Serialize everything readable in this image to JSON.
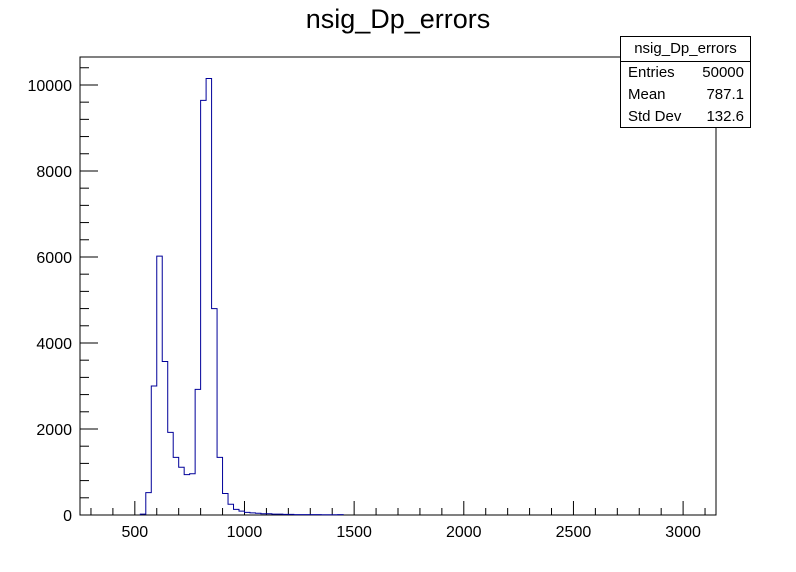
{
  "chart_data": {
    "type": "bar",
    "title": "nsig_Dp_errors",
    "xlabel": "",
    "ylabel": "",
    "xlim": [
      250,
      3150
    ],
    "ylim": [
      0,
      10650
    ],
    "bin_width": 25,
    "x_ticks": [
      500,
      1000,
      1500,
      2000,
      2500,
      3000
    ],
    "y_ticks": [
      0,
      2000,
      4000,
      6000,
      8000,
      10000
    ],
    "bin_low_edges": [
      525,
      550,
      575,
      600,
      625,
      650,
      675,
      700,
      725,
      750,
      775,
      800,
      825,
      850,
      875,
      900,
      925,
      950,
      975,
      1000,
      1025,
      1050,
      1075,
      1100,
      1125,
      1150,
      1175,
      1200,
      1225,
      1250,
      1275,
      1300,
      1325,
      1350,
      1375,
      1400,
      1425
    ],
    "values": [
      20,
      520,
      3000,
      6020,
      3570,
      1920,
      1340,
      1110,
      940,
      960,
      2920,
      9640,
      10150,
      4800,
      1340,
      500,
      250,
      130,
      90,
      60,
      50,
      40,
      30,
      30,
      20,
      20,
      15,
      15,
      10,
      10,
      10,
      8,
      8,
      6,
      5,
      5,
      10
    ],
    "line_color": "#000099",
    "grid": false,
    "legend": "none",
    "stats_box": {
      "title": "nsig_Dp_errors",
      "rows": [
        {
          "label": "Entries",
          "value": "50000"
        },
        {
          "label": "Mean",
          "value": "787.1"
        },
        {
          "label": "Std Dev",
          "value": "132.6"
        }
      ],
      "placement": "top-right"
    }
  }
}
